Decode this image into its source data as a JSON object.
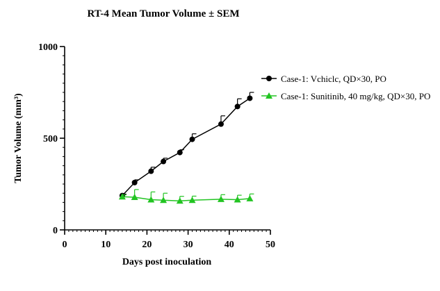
{
  "chart_data": {
    "type": "line",
    "title": "RT-4 Mean Tumor Volume ± SEM",
    "xlabel": "Days post inoculation",
    "ylabel": "Tumor Volume (mm³)",
    "xlim": [
      0,
      50
    ],
    "ylim": [
      0,
      1000
    ],
    "x_ticks": [
      0,
      10,
      20,
      30,
      40,
      50
    ],
    "y_ticks": [
      0,
      500,
      1000
    ],
    "x_minor_step": 1,
    "y_minor_step": 50,
    "grid": false,
    "legend_position": "right",
    "series": [
      {
        "name": "Case-1: Vchiclc, QD×30, PO",
        "color": "#000000",
        "marker": "circle",
        "error_direction": "up",
        "x": [
          14,
          17,
          21,
          24,
          28,
          31,
          38,
          42,
          45
        ],
        "y": [
          187,
          258,
          320,
          373,
          422,
          494,
          577,
          673,
          718
        ],
        "sem": [
          8,
          15,
          22,
          18,
          15,
          30,
          45,
          42,
          32
        ]
      },
      {
        "name": "Case-1: Sunitinib, 40 mg/kg, QD×30, PO",
        "color": "#22c422",
        "marker": "triangle",
        "error_direction": "up",
        "x": [
          14,
          17,
          21,
          24,
          28,
          31,
          38,
          42,
          45
        ],
        "y": [
          181,
          178,
          165,
          162,
          158,
          162,
          167,
          165,
          171
        ],
        "sem": [
          10,
          42,
          42,
          38,
          25,
          22,
          25,
          24,
          25
        ]
      }
    ]
  }
}
